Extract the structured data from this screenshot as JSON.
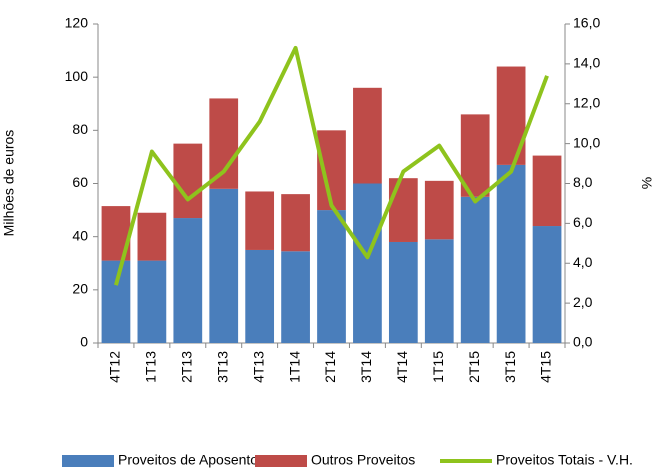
{
  "chart_data": {
    "type": "bar-line",
    "categories": [
      "4T12",
      "1T13",
      "2T13",
      "3T13",
      "4T13",
      "1T14",
      "2T14",
      "3T14",
      "4T14",
      "1T15",
      "2T15",
      "3T15",
      "4T15"
    ],
    "series": [
      {
        "name": "Proveitos de Aposento",
        "color": "#4a7ebb",
        "kind": "bar",
        "values": [
          31,
          31,
          47,
          58,
          35,
          34.5,
          50,
          60,
          38,
          39,
          55,
          67,
          44
        ]
      },
      {
        "name": "Outros Proveitos",
        "color": "#be4b48",
        "kind": "bar",
        "values": [
          20.5,
          18,
          28,
          34,
          22,
          21.5,
          30,
          36,
          24,
          22,
          31,
          37,
          26.5
        ]
      },
      {
        "name": "Proveitos Totais - V.H.",
        "color": "#8ec31d",
        "kind": "line",
        "axis": "y2",
        "values": [
          2.9,
          9.6,
          7.2,
          8.6,
          11.1,
          14.8,
          6.9,
          4.3,
          8.6,
          9.9,
          7.1,
          8.6,
          13.4
        ]
      }
    ],
    "ylabel": "Milhões de euros",
    "y2label": "%",
    "ylim": [
      0,
      120
    ],
    "yticks": [
      0,
      20,
      40,
      60,
      80,
      100,
      120
    ],
    "y2lim": [
      0,
      16
    ],
    "y2ticks": [
      {
        "value": 0,
        "label": "0,0"
      },
      {
        "value": 2,
        "label": "2,0"
      },
      {
        "value": 4,
        "label": "4,0"
      },
      {
        "value": 6,
        "label": "6,0"
      },
      {
        "value": 8,
        "label": "8,0"
      },
      {
        "value": 10,
        "label": "10,0"
      },
      {
        "value": 12,
        "label": "12,0"
      },
      {
        "value": 14,
        "label": "14,0"
      },
      {
        "value": 16,
        "label": "16,0"
      }
    ],
    "legend": "bottom"
  }
}
